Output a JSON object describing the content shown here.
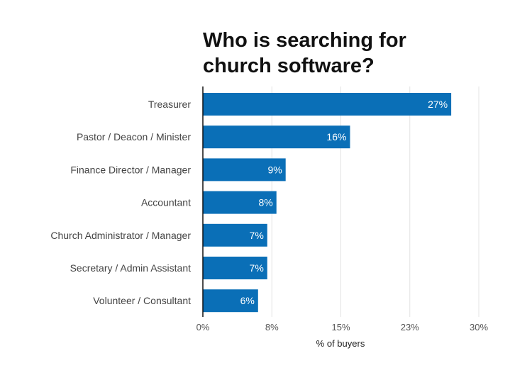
{
  "chart_data": {
    "type": "bar",
    "orientation": "horizontal",
    "title_lines": [
      "Who is searching for",
      "church software?"
    ],
    "categories": [
      "Treasurer",
      "Pastor / Deacon / Minister",
      "Finance Director / Manager",
      "Accountant",
      "Church Administrator / Manager",
      "Secretary / Admin Assistant",
      "Volunteer / Consultant"
    ],
    "values": [
      27,
      16,
      9,
      8,
      7,
      7,
      6
    ],
    "value_labels": [
      "27%",
      "16%",
      "9%",
      "8%",
      "7%",
      "7%",
      "6%"
    ],
    "xticks": [
      0,
      7.5,
      15,
      22.5,
      30
    ],
    "xtick_labels": [
      "0%",
      "8%",
      "15%",
      "23%",
      "30%"
    ],
    "xlim": [
      0,
      30
    ],
    "xlabel": "% of buyers",
    "bar_color": "#0a6fb7",
    "grid": true
  }
}
